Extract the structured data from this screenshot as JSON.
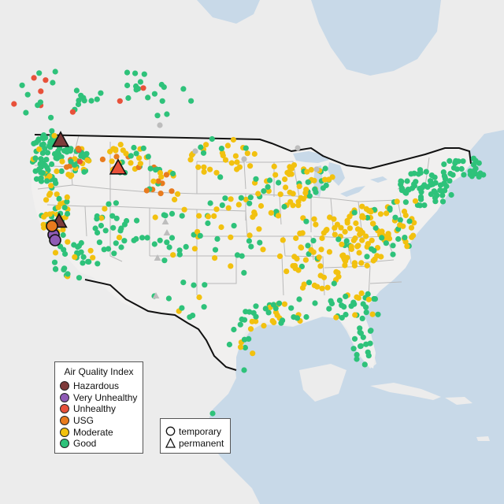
{
  "legend": {
    "title": "Air Quality Index",
    "items": [
      {
        "label": "Hazardous",
        "color": "#7e3a3a"
      },
      {
        "label": "Very Unhealthy",
        "color": "#8e5bb5"
      },
      {
        "label": "Unhealthy",
        "color": "#e8513a"
      },
      {
        "label": "USG",
        "color": "#e87b1e"
      },
      {
        "label": "Moderate",
        "color": "#f2c10f"
      },
      {
        "label": "Good",
        "color": "#2ec27a"
      }
    ]
  },
  "monitor_types": [
    {
      "label": "temporary",
      "shape": "circle"
    },
    {
      "label": "permanent",
      "shape": "triangle"
    }
  ],
  "colors": {
    "water": "#c8d9e8",
    "land": "#ececec",
    "usa_land": "#f1f0ef",
    "state_border": "#b9b9b9",
    "country_border": "#111111",
    "no_data": "#bdbdbd"
  }
}
